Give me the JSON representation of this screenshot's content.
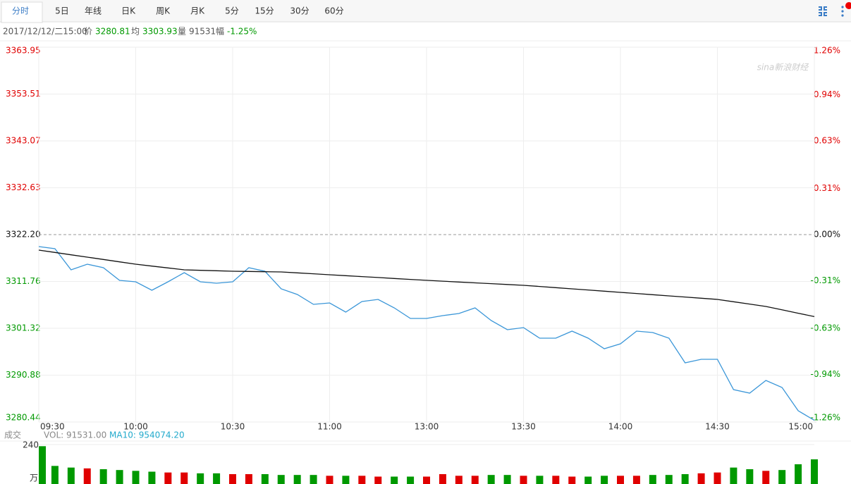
{
  "toolbar": {
    "tabs": [
      "分时",
      "5日",
      "年线",
      "日K",
      "周K",
      "月K",
      "5分",
      "15分",
      "30分",
      "60分"
    ]
  },
  "info": {
    "datetime": "2017/12/12/二15:00",
    "price_label": "价",
    "price": "3280.81",
    "avg_label": "均",
    "avg": "3303.93",
    "vol_label": "量",
    "vol": "91531",
    "change_label": "幅",
    "change": "-1.25%"
  },
  "watermark": "sina新浪财经",
  "chart_data": {
    "type": "line",
    "x": [
      "09:30",
      "09:35",
      "09:40",
      "09:45",
      "09:50",
      "09:55",
      "10:00",
      "10:05",
      "10:10",
      "10:15",
      "10:20",
      "10:25",
      "10:30",
      "10:35",
      "10:40",
      "10:45",
      "10:50",
      "10:55",
      "11:00",
      "11:05",
      "11:10",
      "11:15",
      "11:20",
      "11:25",
      "13:00",
      "13:05",
      "13:10",
      "13:15",
      "13:20",
      "13:25",
      "13:30",
      "13:35",
      "13:40",
      "13:45",
      "13:50",
      "13:55",
      "14:00",
      "14:05",
      "14:10",
      "14:15",
      "14:20",
      "14:25",
      "14:30",
      "14:35",
      "14:40",
      "14:45",
      "14:50",
      "14:55",
      "15:00"
    ],
    "series": [
      {
        "name": "价",
        "color": "#3a96d8",
        "values": [
          3319.53,
          3319.06,
          3314.35,
          3315.6,
          3314.82,
          3311.99,
          3311.68,
          3309.8,
          3311.68,
          3313.72,
          3311.68,
          3311.37,
          3311.68,
          3314.82,
          3314.03,
          3310.11,
          3308.85,
          3306.66,
          3306.97,
          3304.93,
          3307.28,
          3307.75,
          3305.87,
          3303.52,
          3303.52,
          3304.14,
          3304.62,
          3305.87,
          3303.05,
          3301.01,
          3301.48,
          3299.12,
          3299.12,
          3300.69,
          3299.12,
          3296.77,
          3297.87,
          3300.69,
          3300.38,
          3299.12,
          3293.63,
          3294.41,
          3294.41,
          3287.66,
          3286.88,
          3289.7,
          3288.13,
          3282.95,
          3280.81
        ]
      },
      {
        "name": "均",
        "color": "#111111",
        "values": [
          3318.74,
          3318.22,
          3317.69,
          3317.17,
          3316.65,
          3316.12,
          3315.6,
          3315.18,
          3314.77,
          3314.35,
          3314.24,
          3314.14,
          3314.03,
          3313.98,
          3313.93,
          3313.88,
          3313.67,
          3313.46,
          3313.25,
          3313.04,
          3312.84,
          3312.63,
          3312.42,
          3312.21,
          3312.0,
          3311.82,
          3311.63,
          3311.45,
          3311.27,
          3311.08,
          3310.9,
          3310.64,
          3310.38,
          3310.11,
          3309.85,
          3309.59,
          3309.33,
          3309.07,
          3308.81,
          3308.54,
          3308.28,
          3308.02,
          3307.76,
          3307.24,
          3306.71,
          3306.19,
          3305.44,
          3304.68,
          3303.93
        ]
      }
    ],
    "xticks": [
      "09:30",
      "10:00",
      "10:30",
      "11:00",
      "13:00",
      "13:30",
      "14:00",
      "14:30",
      "15:00"
    ],
    "ylim": [
      3280.44,
      3363.95
    ],
    "yticks": [
      3363.95,
      3353.51,
      3343.07,
      3332.63,
      {
        "value": 3322.2,
        "label": "3322.20"
      },
      3311.76,
      3301.32,
      3290.88,
      3280.44
    ],
    "y2lim": [
      -1.26,
      1.26
    ],
    "y2ticks": [
      {
        "value": 1.26,
        "label": "1.26%"
      },
      {
        "value": 0.94,
        "label": "0.94%"
      },
      {
        "value": 0.63,
        "label": "0.63%"
      },
      {
        "value": 0.31,
        "label": "0.31%"
      },
      {
        "value": 0,
        "label": "0.00%"
      },
      {
        "value": -0.31,
        "label": "-0.31%"
      },
      {
        "value": -0.63,
        "label": "-0.63%"
      },
      {
        "value": -0.94,
        "label": "-0.94%"
      },
      {
        "value": -1.26,
        "label": "-1.26%"
      }
    ],
    "baseline": 3322.2,
    "up_color": "#e00000",
    "down_color": "#009900",
    "flat_color": "#111111",
    "grid": true,
    "volume": {
      "label": "成交",
      "vol_text": "VOL: 91531.00",
      "ma_text": "MA10: 954074.20",
      "unit": "万",
      "ylim": [
        0,
        240
      ],
      "yticks": [
        240
      ],
      "values": [
        230,
        110,
        100,
        95,
        90,
        85,
        80,
        75,
        70,
        70,
        65,
        65,
        60,
        60,
        60,
        55,
        55,
        55,
        50,
        50,
        50,
        45,
        45,
        45,
        45,
        60,
        50,
        50,
        55,
        55,
        50,
        50,
        50,
        45,
        45,
        50,
        50,
        50,
        55,
        55,
        60,
        65,
        70,
        100,
        90,
        80,
        85,
        120,
        150
      ]
    }
  }
}
